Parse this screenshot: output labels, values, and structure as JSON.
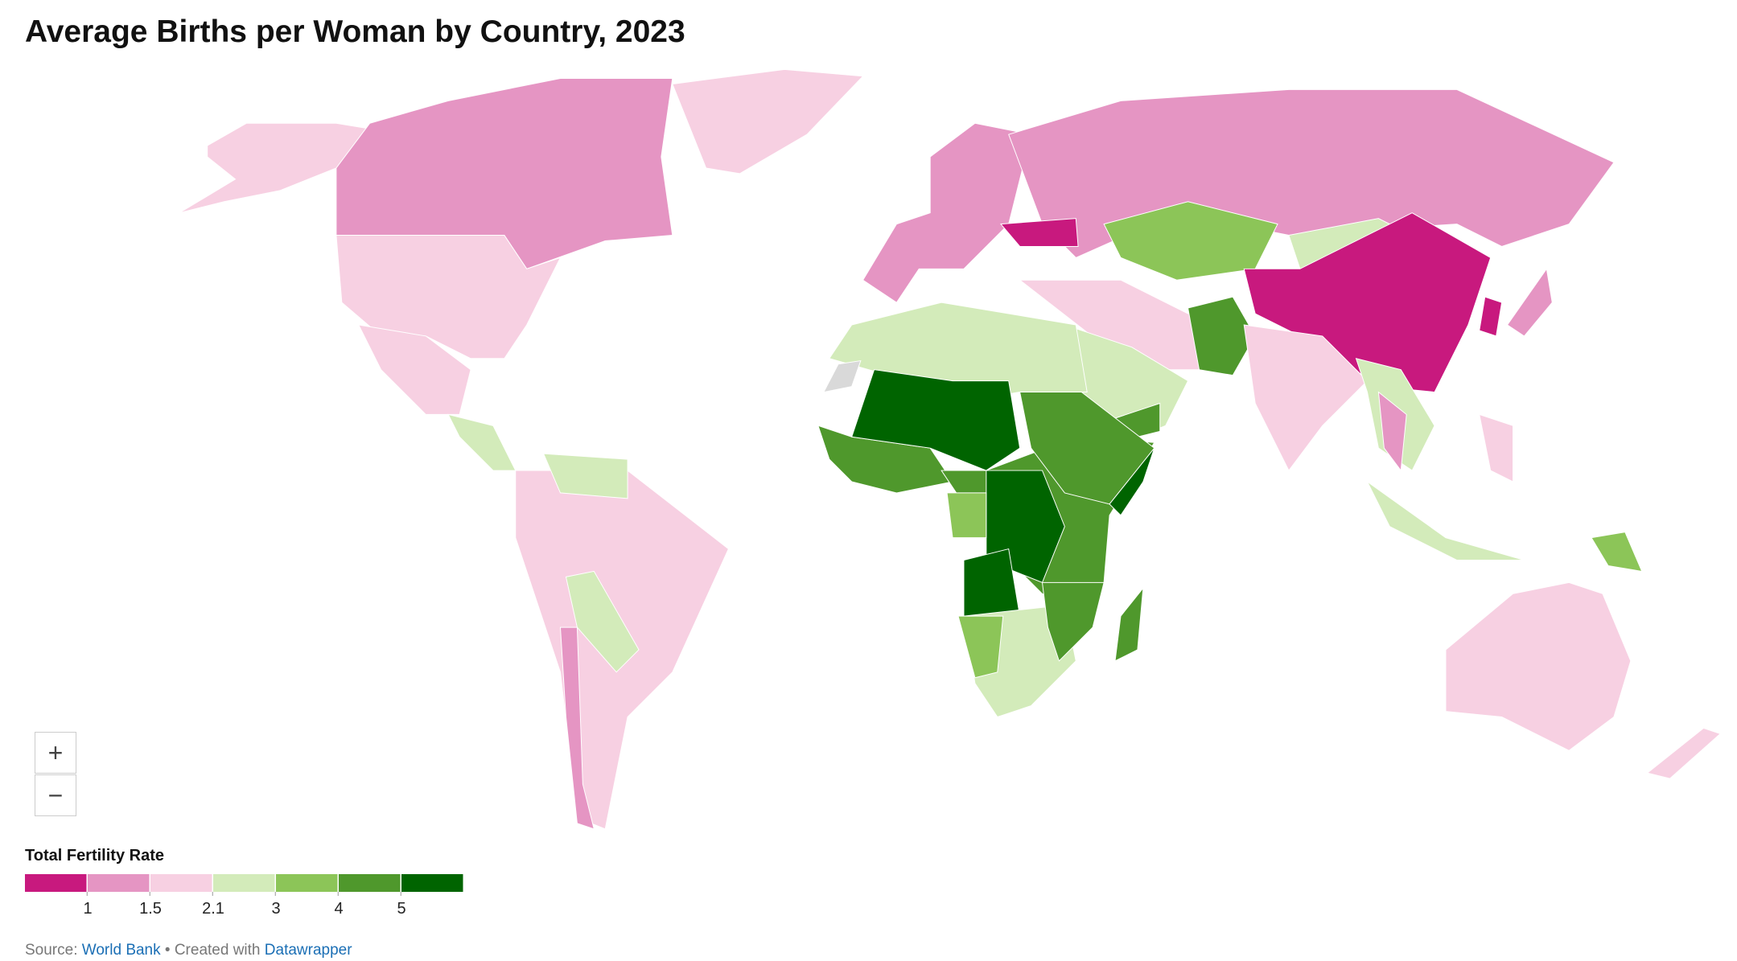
{
  "title": "Average Births per Woman by Country, 2023",
  "zoom": {
    "in": "+",
    "out": "−"
  },
  "legend": {
    "title": "Total Fertility Rate",
    "colors": [
      "#c8197e",
      "#e595c3",
      "#f7d0e2",
      "#d3ebba",
      "#8cc558",
      "#4f982c",
      "#006400"
    ],
    "breaks": [
      1,
      1.5,
      2.1,
      3,
      4,
      5
    ]
  },
  "footer": {
    "source_label": "Source:",
    "source_link": "World Bank",
    "separator": "• Created with",
    "credit_link": "Datawrapper"
  }
}
